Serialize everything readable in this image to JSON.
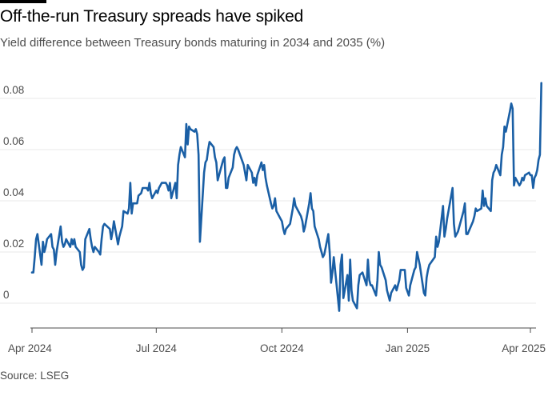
{
  "title": "Off-the-run Treasury spreads have spiked",
  "subtitle": "Yield difference between Treasury bonds maturing in 2034 and 2035 (%)",
  "source": "Source: LSEG",
  "colors": {
    "line": "#1a5fa5",
    "grid": "#e8e8e8",
    "axis": "#4d4d4d",
    "text": "#4d4d4d"
  },
  "chart_data": {
    "type": "line",
    "title": "Off-the-run Treasury spreads have spiked",
    "subtitle": "Yield difference between Treasury bonds maturing in 2034 and 2035 (%)",
    "xlabel": "",
    "ylabel": "",
    "x_ticks": [
      {
        "date": "2024-04-01",
        "label": "Apr 2024"
      },
      {
        "date": "2024-07-01",
        "label": "Jul 2024"
      },
      {
        "date": "2024-10-01",
        "label": "Oct 2024"
      },
      {
        "date": "2025-01-01",
        "label": "Jan 2025"
      },
      {
        "date": "2025-04-01",
        "label": "Apr 2025"
      }
    ],
    "y_ticks": [
      {
        "value": 0,
        "label": "0"
      },
      {
        "value": 0.02,
        "label": "0.02"
      },
      {
        "value": 0.04,
        "label": "0.04"
      },
      {
        "value": 0.06,
        "label": "0.06"
      },
      {
        "value": 0.08,
        "label": "0.08"
      }
    ],
    "xlim": [
      "2024-04-01",
      "2025-04-08"
    ],
    "ylim": [
      -0.01,
      0.09
    ],
    "grid": true,
    "series": [
      {
        "color": "#1a5fa5",
        "points": [
          [
            "2024-04-01",
            0.012
          ],
          [
            "2024-04-02",
            0.012
          ],
          [
            "2024-04-03",
            0.018
          ],
          [
            "2024-04-04",
            0.025
          ],
          [
            "2024-04-05",
            0.027
          ],
          [
            "2024-04-08",
            0.015
          ],
          [
            "2024-04-09",
            0.024
          ],
          [
            "2024-04-10",
            0.02
          ],
          [
            "2024-04-11",
            0.022
          ],
          [
            "2024-04-12",
            0.025
          ],
          [
            "2024-04-15",
            0.027
          ],
          [
            "2024-04-16",
            0.022
          ],
          [
            "2024-04-17",
            0.021
          ],
          [
            "2024-04-18",
            0.015
          ],
          [
            "2024-04-19",
            0.02
          ],
          [
            "2024-04-22",
            0.03
          ],
          [
            "2024-04-23",
            0.024
          ],
          [
            "2024-04-24",
            0.022
          ],
          [
            "2024-04-25",
            0.023
          ],
          [
            "2024-04-26",
            0.025
          ],
          [
            "2024-04-29",
            0.022
          ],
          [
            "2024-04-30",
            0.025
          ],
          [
            "2024-05-01",
            0.023
          ],
          [
            "2024-05-02",
            0.025
          ],
          [
            "2024-05-03",
            0.022
          ],
          [
            "2024-05-06",
            0.02
          ],
          [
            "2024-05-07",
            0.015
          ],
          [
            "2024-05-08",
            0.013
          ],
          [
            "2024-05-09",
            0.014
          ],
          [
            "2024-05-10",
            0.025
          ],
          [
            "2024-05-13",
            0.029
          ],
          [
            "2024-05-14",
            0.025
          ],
          [
            "2024-05-15",
            0.022
          ],
          [
            "2024-05-16",
            0.02
          ],
          [
            "2024-05-17",
            0.022
          ],
          [
            "2024-05-20",
            0.02
          ],
          [
            "2024-05-21",
            0.019
          ],
          [
            "2024-05-22",
            0.025
          ],
          [
            "2024-05-23",
            0.03
          ],
          [
            "2024-05-24",
            0.031
          ],
          [
            "2024-05-28",
            0.029
          ],
          [
            "2024-05-29",
            0.025
          ],
          [
            "2024-05-30",
            0.028
          ],
          [
            "2024-05-31",
            0.032
          ],
          [
            "2024-06-03",
            0.023
          ],
          [
            "2024-06-04",
            0.026
          ],
          [
            "2024-06-05",
            0.028
          ],
          [
            "2024-06-06",
            0.03
          ],
          [
            "2024-06-07",
            0.036
          ],
          [
            "2024-06-10",
            0.035
          ],
          [
            "2024-06-11",
            0.037
          ],
          [
            "2024-06-12",
            0.047
          ],
          [
            "2024-06-13",
            0.035
          ],
          [
            "2024-06-14",
            0.039
          ],
          [
            "2024-06-17",
            0.039
          ],
          [
            "2024-06-18",
            0.042
          ],
          [
            "2024-06-20",
            0.043
          ],
          [
            "2024-06-21",
            0.045
          ],
          [
            "2024-06-24",
            0.045
          ],
          [
            "2024-06-25",
            0.044
          ],
          [
            "2024-06-26",
            0.047
          ],
          [
            "2024-06-27",
            0.043
          ],
          [
            "2024-06-28",
            0.041
          ],
          [
            "2024-07-01",
            0.044
          ],
          [
            "2024-07-02",
            0.043
          ],
          [
            "2024-07-03",
            0.045
          ],
          [
            "2024-07-05",
            0.047
          ],
          [
            "2024-07-08",
            0.047
          ],
          [
            "2024-07-09",
            0.046
          ],
          [
            "2024-07-10",
            0.044
          ],
          [
            "2024-07-11",
            0.047
          ],
          [
            "2024-07-12",
            0.041
          ],
          [
            "2024-07-15",
            0.047
          ],
          [
            "2024-07-16",
            0.041
          ],
          [
            "2024-07-17",
            0.054
          ],
          [
            "2024-07-18",
            0.058
          ],
          [
            "2024-07-19",
            0.061
          ],
          [
            "2024-07-22",
            0.057
          ],
          [
            "2024-07-23",
            0.07
          ],
          [
            "2024-07-24",
            0.062
          ],
          [
            "2024-07-25",
            0.069
          ],
          [
            "2024-07-26",
            0.068
          ],
          [
            "2024-07-29",
            0.067
          ],
          [
            "2024-07-30",
            0.068
          ],
          [
            "2024-07-31",
            0.066
          ],
          [
            "2024-08-01",
            0.058
          ],
          [
            "2024-08-02",
            0.024
          ],
          [
            "2024-08-05",
            0.051
          ],
          [
            "2024-08-06",
            0.055
          ],
          [
            "2024-08-07",
            0.056
          ],
          [
            "2024-08-08",
            0.06
          ],
          [
            "2024-08-09",
            0.063
          ],
          [
            "2024-08-12",
            0.061
          ],
          [
            "2024-08-13",
            0.057
          ],
          [
            "2024-08-14",
            0.055
          ],
          [
            "2024-08-15",
            0.048
          ],
          [
            "2024-08-16",
            0.05
          ],
          [
            "2024-08-19",
            0.056
          ],
          [
            "2024-08-20",
            0.057
          ],
          [
            "2024-08-21",
            0.045
          ],
          [
            "2024-08-22",
            0.045
          ],
          [
            "2024-08-23",
            0.049
          ],
          [
            "2024-08-26",
            0.053
          ],
          [
            "2024-08-27",
            0.058
          ],
          [
            "2024-08-28",
            0.06
          ],
          [
            "2024-08-29",
            0.061
          ],
          [
            "2024-08-30",
            0.06
          ],
          [
            "2024-09-03",
            0.054
          ],
          [
            "2024-09-04",
            0.051
          ],
          [
            "2024-09-05",
            0.048
          ],
          [
            "2024-09-06",
            0.054
          ],
          [
            "2024-09-09",
            0.051
          ],
          [
            "2024-09-10",
            0.047
          ],
          [
            "2024-09-11",
            0.049
          ],
          [
            "2024-09-12",
            0.046
          ],
          [
            "2024-09-13",
            0.05
          ],
          [
            "2024-09-16",
            0.055
          ],
          [
            "2024-09-17",
            0.052
          ],
          [
            "2024-09-18",
            0.054
          ],
          [
            "2024-09-19",
            0.049
          ],
          [
            "2024-09-20",
            0.046
          ],
          [
            "2024-09-23",
            0.039
          ],
          [
            "2024-09-24",
            0.037
          ],
          [
            "2024-09-25",
            0.038
          ],
          [
            "2024-09-26",
            0.041
          ],
          [
            "2024-09-27",
            0.036
          ],
          [
            "2024-09-30",
            0.033
          ],
          [
            "2024-10-01",
            0.032
          ],
          [
            "2024-10-02",
            0.029
          ],
          [
            "2024-10-03",
            0.027
          ],
          [
            "2024-10-04",
            0.029
          ],
          [
            "2024-10-07",
            0.031
          ],
          [
            "2024-10-08",
            0.034
          ],
          [
            "2024-10-09",
            0.037
          ],
          [
            "2024-10-10",
            0.041
          ],
          [
            "2024-10-11",
            0.038
          ],
          [
            "2024-10-14",
            0.035
          ],
          [
            "2024-10-15",
            0.034
          ],
          [
            "2024-10-16",
            0.032
          ],
          [
            "2024-10-17",
            0.028
          ],
          [
            "2024-10-18",
            0.03
          ],
          [
            "2024-10-21",
            0.039
          ],
          [
            "2024-10-22",
            0.043
          ],
          [
            "2024-10-23",
            0.037
          ],
          [
            "2024-10-24",
            0.036
          ],
          [
            "2024-10-25",
            0.03
          ],
          [
            "2024-10-28",
            0.025
          ],
          [
            "2024-10-29",
            0.022
          ],
          [
            "2024-10-30",
            0.02
          ],
          [
            "2024-10-31",
            0.018
          ],
          [
            "2024-11-01",
            0.019
          ],
          [
            "2024-11-04",
            0.027
          ],
          [
            "2024-11-05",
            0.02
          ],
          [
            "2024-11-06",
            0.008
          ],
          [
            "2024-11-07",
            0.012
          ],
          [
            "2024-11-08",
            0.018
          ],
          [
            "2024-11-12",
            -0.003
          ],
          [
            "2024-11-13",
            0.015
          ],
          [
            "2024-11-14",
            0.019
          ],
          [
            "2024-11-15",
            0.002
          ],
          [
            "2024-11-18",
            0.011
          ],
          [
            "2024-11-19",
            0.001
          ],
          [
            "2024-11-20",
            0.017
          ],
          [
            "2024-11-21",
            0.005
          ],
          [
            "2024-11-22",
            0.001
          ],
          [
            "2024-11-25",
            -0.002
          ],
          [
            "2024-11-26",
            0.007
          ],
          [
            "2024-11-27",
            0.011
          ],
          [
            "2024-11-29",
            0.012
          ],
          [
            "2024-12-02",
            0.007
          ],
          [
            "2024-12-03",
            0.017
          ],
          [
            "2024-12-04",
            0.009
          ],
          [
            "2024-12-05",
            0.007
          ],
          [
            "2024-12-06",
            0.007
          ],
          [
            "2024-12-09",
            0.003
          ],
          [
            "2024-12-10",
            0.009
          ],
          [
            "2024-12-11",
            0.02
          ],
          [
            "2024-12-12",
            0.015
          ],
          [
            "2024-12-13",
            0.014
          ],
          [
            "2024-12-16",
            0.009
          ],
          [
            "2024-12-17",
            0.005
          ],
          [
            "2024-12-18",
            0.003
          ],
          [
            "2024-12-19",
            0.001
          ],
          [
            "2024-12-20",
            0.004
          ],
          [
            "2024-12-23",
            0.007
          ],
          [
            "2024-12-24",
            0.005
          ],
          [
            "2024-12-26",
            0.009
          ],
          [
            "2024-12-27",
            0.013
          ],
          [
            "2024-12-30",
            0.013
          ],
          [
            "2024-12-31",
            0.006
          ],
          [
            "2025-01-02",
            0.003
          ],
          [
            "2025-01-03",
            0.007
          ],
          [
            "2025-01-06",
            0.013
          ],
          [
            "2025-01-07",
            0.014
          ],
          [
            "2025-01-08",
            0.02
          ],
          [
            "2025-01-10",
            0.015
          ],
          [
            "2025-01-13",
            0.004
          ],
          [
            "2025-01-14",
            0.003
          ],
          [
            "2025-01-15",
            0.01
          ],
          [
            "2025-01-16",
            0.013
          ],
          [
            "2025-01-17",
            0.015
          ],
          [
            "2025-01-21",
            0.018
          ],
          [
            "2025-01-22",
            0.026
          ],
          [
            "2025-01-23",
            0.022
          ],
          [
            "2025-01-24",
            0.024
          ],
          [
            "2025-01-27",
            0.038
          ],
          [
            "2025-01-28",
            0.026
          ],
          [
            "2025-01-29",
            0.029
          ],
          [
            "2025-01-30",
            0.033
          ],
          [
            "2025-01-31",
            0.036
          ],
          [
            "2025-02-03",
            0.045
          ],
          [
            "2025-02-04",
            0.031
          ],
          [
            "2025-02-05",
            0.026
          ],
          [
            "2025-02-06",
            0.027
          ],
          [
            "2025-02-07",
            0.028
          ],
          [
            "2025-02-10",
            0.034
          ],
          [
            "2025-02-11",
            0.036
          ],
          [
            "2025-02-12",
            0.039
          ],
          [
            "2025-02-13",
            0.027
          ],
          [
            "2025-02-14",
            0.027
          ],
          [
            "2025-02-18",
            0.032
          ],
          [
            "2025-02-19",
            0.034
          ],
          [
            "2025-02-20",
            0.037
          ],
          [
            "2025-02-21",
            0.036
          ],
          [
            "2025-02-24",
            0.037
          ],
          [
            "2025-02-25",
            0.044
          ],
          [
            "2025-02-26",
            0.038
          ],
          [
            "2025-02-27",
            0.041
          ],
          [
            "2025-02-28",
            0.038
          ],
          [
            "2025-03-03",
            0.036
          ],
          [
            "2025-03-04",
            0.048
          ],
          [
            "2025-03-05",
            0.051
          ],
          [
            "2025-03-06",
            0.052
          ],
          [
            "2025-03-07",
            0.054
          ],
          [
            "2025-03-10",
            0.05
          ],
          [
            "2025-03-11",
            0.058
          ],
          [
            "2025-03-12",
            0.061
          ],
          [
            "2025-03-13",
            0.069
          ],
          [
            "2025-03-14",
            0.067
          ],
          [
            "2025-03-17",
            0.075
          ],
          [
            "2025-03-18",
            0.078
          ],
          [
            "2025-03-19",
            0.076
          ],
          [
            "2025-03-20",
            0.046
          ],
          [
            "2025-03-21",
            0.049
          ],
          [
            "2025-03-24",
            0.046
          ],
          [
            "2025-03-25",
            0.047
          ],
          [
            "2025-03-26",
            0.049
          ],
          [
            "2025-03-27",
            0.048
          ],
          [
            "2025-03-28",
            0.05
          ],
          [
            "2025-03-31",
            0.051
          ],
          [
            "2025-04-01",
            0.05
          ],
          [
            "2025-04-02",
            0.05
          ],
          [
            "2025-04-03",
            0.045
          ],
          [
            "2025-04-04",
            0.049
          ],
          [
            "2025-04-05",
            0.05
          ],
          [
            "2025-04-06",
            0.052
          ],
          [
            "2025-04-07",
            0.056
          ],
          [
            "2025-04-08",
            0.058
          ],
          [
            "2025-04-09",
            0.086
          ]
        ]
      }
    ]
  }
}
